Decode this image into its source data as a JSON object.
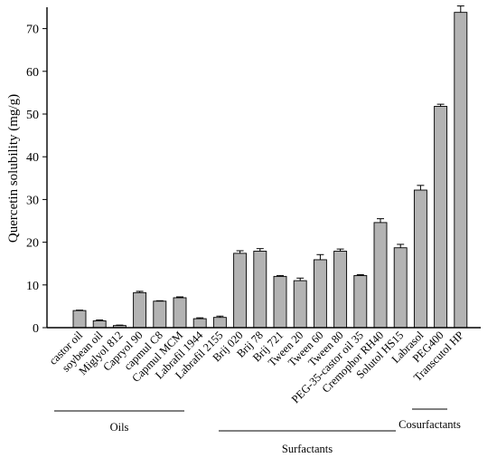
{
  "chart_data": {
    "type": "bar",
    "ylabel": "Quercetin solubility (mg/g)",
    "xlabel": "",
    "ylim": [
      0,
      75
    ],
    "yticks": [
      0,
      10,
      20,
      30,
      40,
      50,
      60,
      70
    ],
    "grid": false,
    "categories": [
      "castor oil",
      "soybean oil",
      "Miglyol 812",
      "Capryol 90",
      "capmul C8",
      "Capmul MCM",
      "Labrafil 1944",
      "Labrafil 2155",
      "Brij 020",
      "Brij 78",
      "Brij 721",
      "Tween 20",
      "Tween 60",
      "Tween 80",
      "PEG-35-castor oil 35",
      "Cremophor RH40",
      "Solutol HS15",
      "Labrasol",
      "PEG400",
      "Transcutol HP"
    ],
    "values": [
      4.0,
      1.6,
      0.5,
      8.2,
      6.2,
      7.0,
      2.1,
      2.4,
      17.4,
      17.9,
      12.0,
      11.0,
      15.9,
      17.9,
      12.2,
      24.6,
      18.7,
      32.2,
      51.8,
      73.8
    ],
    "errors": [
      0.1,
      0.2,
      0.1,
      0.3,
      0.1,
      0.2,
      0.2,
      0.3,
      0.6,
      0.6,
      0.2,
      0.6,
      1.2,
      0.5,
      0.2,
      0.9,
      0.8,
      1.1,
      0.5,
      1.5
    ],
    "groups": [
      {
        "label": "Oils",
        "start": 0,
        "end": 7
      },
      {
        "label": "Surfactants",
        "start": 8,
        "end": 16
      },
      {
        "label": "Cosurfactants",
        "start": 17,
        "end": 18
      }
    ]
  }
}
